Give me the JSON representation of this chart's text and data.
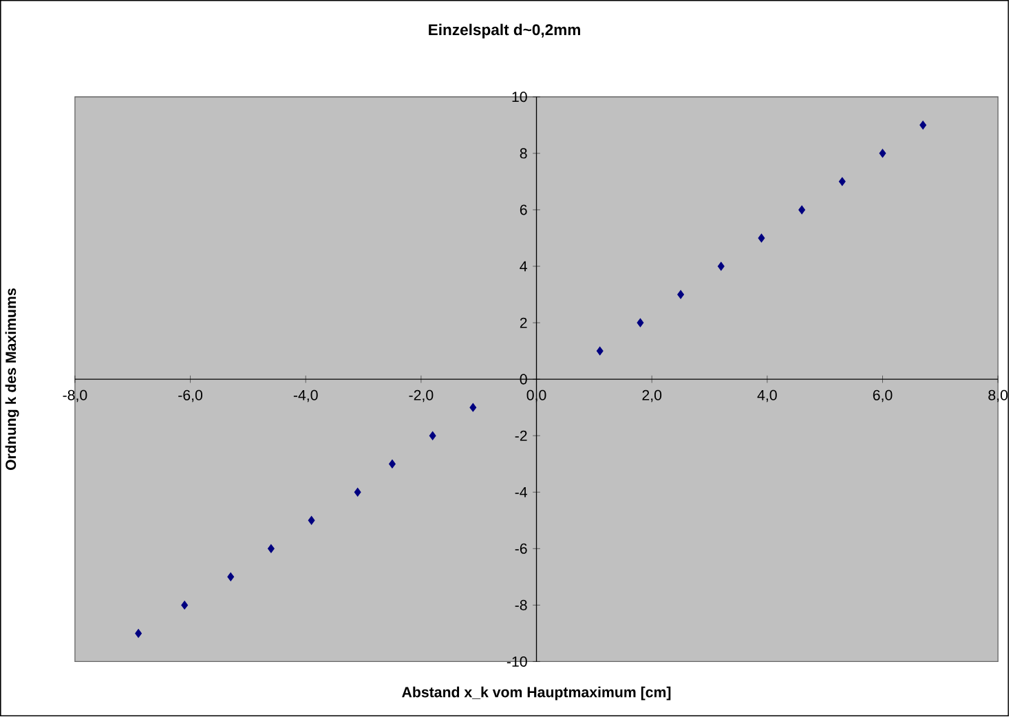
{
  "chart_data": {
    "type": "scatter",
    "title": "Einzelspalt d~0,2mm",
    "xlabel": "Abstand x_k vom Hauptmaximum [cm]",
    "ylabel": "Ordnung k des Maximums",
    "x": [
      1.1,
      1.8,
      2.5,
      3.2,
      3.9,
      4.6,
      5.3,
      6.0,
      6.7,
      -1.1,
      -1.8,
      -2.5,
      -3.1,
      -3.9,
      -4.6,
      -5.3,
      -6.1,
      -6.9
    ],
    "series": [
      {
        "color": "#000080",
        "values": [
          1,
          2,
          3,
          4,
          5,
          6,
          7,
          8,
          9,
          -1,
          -2,
          -3,
          -4,
          -5,
          -6,
          -7,
          -8,
          -9
        ]
      }
    ],
    "xlim": [
      -8,
      8
    ],
    "ylim": [
      -10,
      10
    ],
    "xticks": [
      {
        "value": -8,
        "label": "-8,0"
      },
      {
        "value": -6,
        "label": "-6,0"
      },
      {
        "value": -4,
        "label": "-4,0"
      },
      {
        "value": -2,
        "label": "-2,0"
      },
      {
        "value": 0,
        "label": "0,0"
      },
      {
        "value": 2,
        "label": "2,0"
      },
      {
        "value": 4,
        "label": "4,0"
      },
      {
        "value": 6,
        "label": "6,0"
      },
      {
        "value": 8,
        "label": "8,0"
      }
    ],
    "yticks": [
      -10,
      -8,
      -6,
      -4,
      -2,
      0,
      2,
      4,
      6,
      8,
      10
    ],
    "marker": "diamond",
    "grid": false
  }
}
